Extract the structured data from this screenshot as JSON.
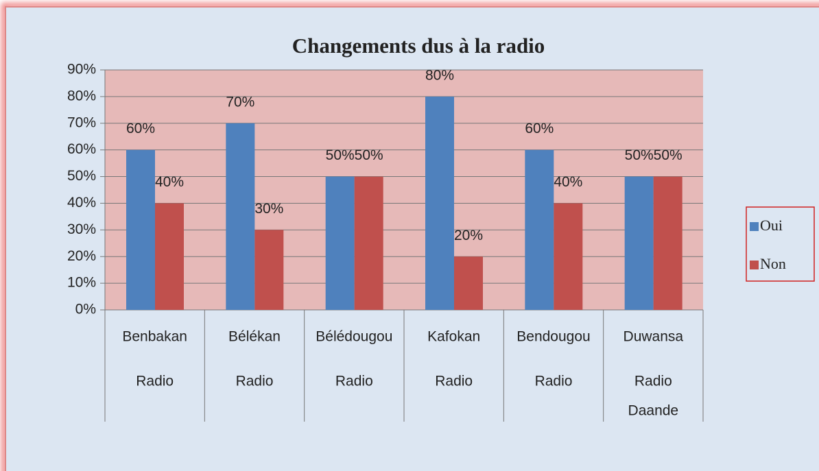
{
  "chart_data": {
    "type": "bar",
    "title": "Changements dus à la radio",
    "categories": [
      [
        "Benbakan",
        "Radio"
      ],
      [
        "Bélékan",
        "Radio"
      ],
      [
        "Bélédougou",
        "Radio"
      ],
      [
        "Kafokan",
        "Radio"
      ],
      [
        "Bendougou",
        "Radio"
      ],
      [
        "Duwansa",
        "Radio",
        "Daande"
      ]
    ],
    "series": [
      {
        "name": "Oui",
        "color": "#4f81bd",
        "values": [
          60,
          70,
          50,
          80,
          60,
          50
        ],
        "value_labels": [
          "60%",
          "70%",
          "50%",
          "80%",
          "60%",
          "50%"
        ]
      },
      {
        "name": "Non",
        "color": "#c0504d",
        "values": [
          40,
          30,
          50,
          20,
          40,
          50
        ],
        "value_labels": [
          "40%",
          "30%",
          "50%",
          "20%",
          "40%",
          "50%"
        ]
      }
    ],
    "ylim": [
      0,
      90
    ],
    "yticks": [
      {
        "value": 0,
        "label": "0%"
      },
      {
        "value": 10,
        "label": "10%"
      },
      {
        "value": 20,
        "label": "20%"
      },
      {
        "value": 30,
        "label": "30%"
      },
      {
        "value": 40,
        "label": "40%"
      },
      {
        "value": 50,
        "label": "50%"
      },
      {
        "value": 60,
        "label": "60%"
      },
      {
        "value": 70,
        "label": "70%"
      },
      {
        "value": 80,
        "label": "80%"
      },
      {
        "value": 90,
        "label": "90%"
      }
    ],
    "grid": true,
    "legend": "right",
    "plot_color": "#e6b9b8"
  }
}
